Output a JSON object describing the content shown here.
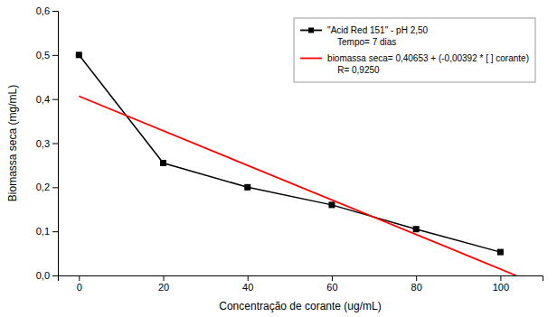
{
  "chart_data": {
    "type": "line",
    "xlabel": "Concentração de corante (ug/mL)",
    "ylabel": "Biomassa seca (mg/mL)",
    "xlim": [
      -5,
      110
    ],
    "ylim": [
      0.0,
      0.6
    ],
    "xticks": [
      0,
      20,
      40,
      60,
      80,
      100
    ],
    "yticks": [
      {
        "value": 0.0,
        "label": "0,0"
      },
      {
        "value": 0.1,
        "label": "0,1"
      },
      {
        "value": 0.2,
        "label": "0,2"
      },
      {
        "value": 0.3,
        "label": "0,3"
      },
      {
        "value": 0.4,
        "label": "0,4"
      },
      {
        "value": 0.5,
        "label": "0,5"
      },
      {
        "value": 0.6,
        "label": "0,6"
      }
    ],
    "grid": false,
    "legend": "upper right",
    "series": [
      {
        "name": "\"Acid Red 151\" - pH 2,50\n    Tempo= 7 dias",
        "color": "#000000",
        "marker": "square",
        "line_style": "solid",
        "x": [
          0,
          20,
          40,
          60,
          80,
          100
        ],
        "values": [
          0.5,
          0.255,
          0.2,
          0.16,
          0.105,
          0.053
        ]
      },
      {
        "name": "biomassa seca= 0,40653 + (-0,00392 * [ ] corante)\n    R= 0,9250",
        "color": "#ff0000",
        "line_style": "solid",
        "x": [
          0,
          103.7
        ],
        "values": [
          0.40653,
          2.6e-05
        ]
      }
    ]
  }
}
